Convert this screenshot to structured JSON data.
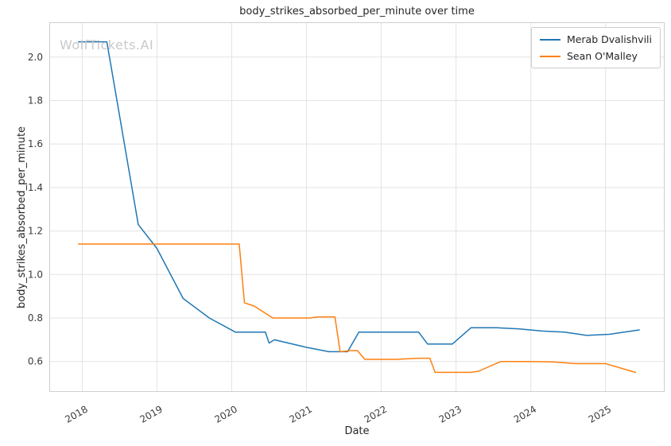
{
  "watermark": "WolfTickets.AI",
  "colors": {
    "series_blue": "#1f77b4",
    "series_orange": "#ff7f0e",
    "grid": "#e3e3e3",
    "spine": "#cfcfcf",
    "tick_label": "#3b3b3b",
    "watermark": "#c9c9c9"
  },
  "chart_data": {
    "type": "line",
    "title": "body_strikes_absorbed_per_minute over time",
    "xlabel": "Date",
    "ylabel": "body_strikes_absorbed_per_minute",
    "xlim": [
      2017.56,
      2025.79
    ],
    "ylim": [
      0.46,
      2.16
    ],
    "x_ticks": [
      2018,
      2019,
      2020,
      2021,
      2022,
      2023,
      2024,
      2025
    ],
    "y_ticks": [
      0.6,
      0.8,
      1.0,
      1.2,
      1.4,
      1.6,
      1.8,
      2.0
    ],
    "grid": true,
    "legend_position": "upper right",
    "series": [
      {
        "name": "Merab Dvalishvili",
        "color": "#1f77b4",
        "x": [
          2017.95,
          2018.33,
          2018.75,
          2019.0,
          2019.35,
          2019.7,
          2020.05,
          2020.45,
          2020.5,
          2020.57,
          2021.0,
          2021.3,
          2021.55,
          2021.7,
          2022.5,
          2022.62,
          2022.95,
          2023.2,
          2023.55,
          2023.85,
          2024.15,
          2024.45,
          2024.75,
          2025.05,
          2025.45
        ],
        "y": [
          2.07,
          2.07,
          1.23,
          1.12,
          0.89,
          0.8,
          0.735,
          0.735,
          0.685,
          0.7,
          0.665,
          0.645,
          0.645,
          0.735,
          0.735,
          0.68,
          0.68,
          0.755,
          0.755,
          0.75,
          0.74,
          0.735,
          0.72,
          0.725,
          0.745
        ]
      },
      {
        "name": "Sean O'Malley",
        "color": "#ff7f0e",
        "x": [
          2017.95,
          2020.1,
          2020.17,
          2020.3,
          2020.55,
          2021.05,
          2021.15,
          2021.38,
          2021.45,
          2021.6,
          2021.68,
          2021.78,
          2022.2,
          2022.5,
          2022.65,
          2022.72,
          2023.2,
          2023.3,
          2023.6,
          2024.0,
          2024.3,
          2024.6,
          2025.0,
          2025.4
        ],
        "y": [
          1.14,
          1.14,
          0.87,
          0.855,
          0.8,
          0.8,
          0.805,
          0.805,
          0.645,
          0.65,
          0.65,
          0.61,
          0.61,
          0.615,
          0.615,
          0.55,
          0.55,
          0.555,
          0.6,
          0.6,
          0.598,
          0.59,
          0.59,
          0.55
        ]
      }
    ]
  }
}
